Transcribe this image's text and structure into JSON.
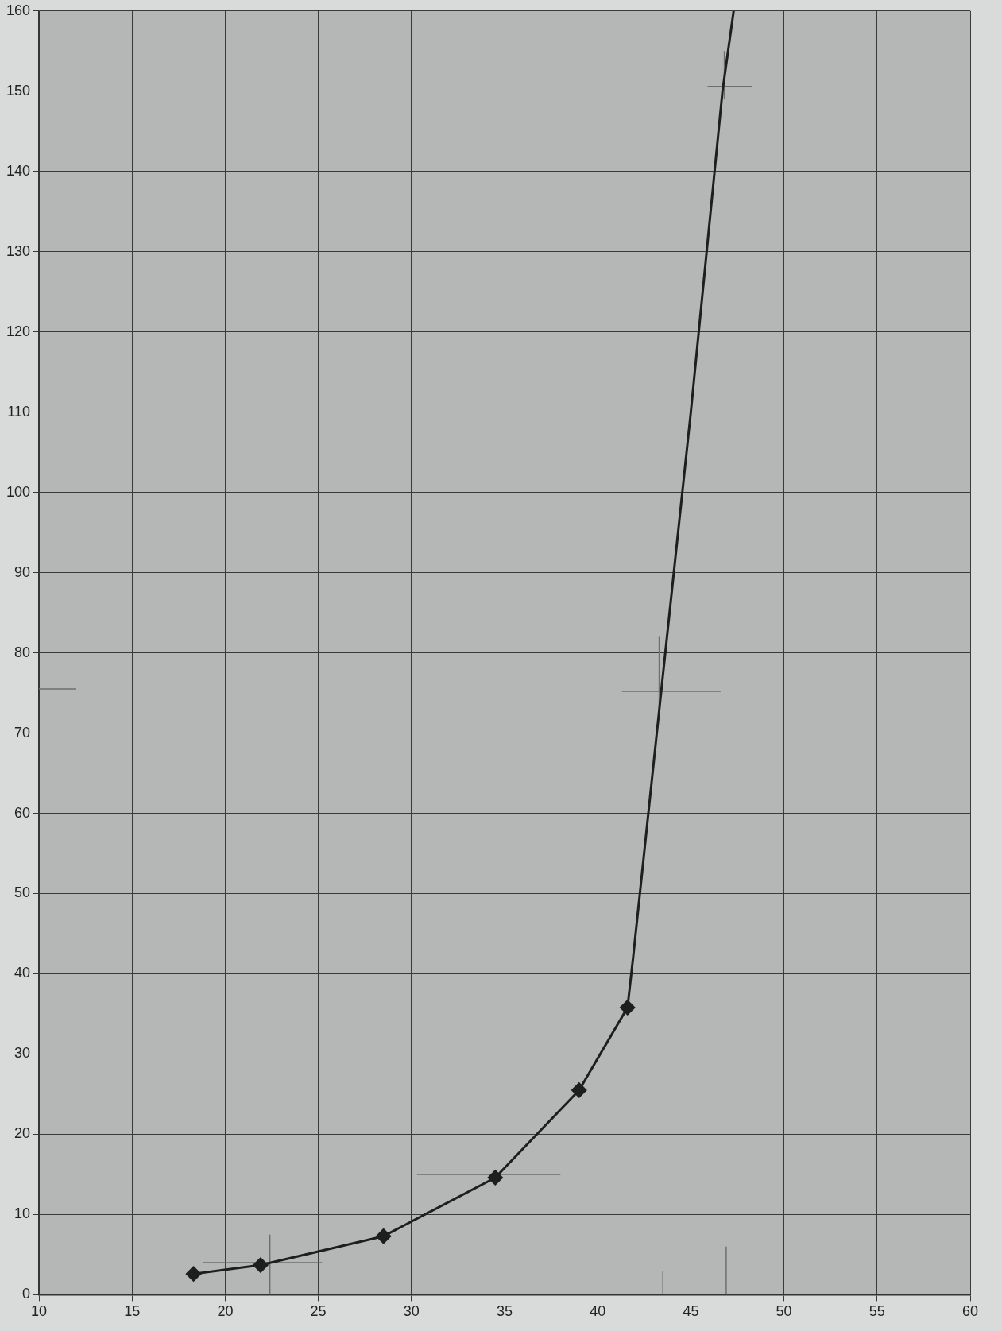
{
  "chart_data": {
    "type": "line",
    "xlim": [
      10,
      60
    ],
    "ylim": [
      0,
      160
    ],
    "xticks": [
      10,
      15,
      20,
      25,
      30,
      35,
      40,
      45,
      50,
      55,
      60
    ],
    "yticks": [
      0,
      10,
      20,
      30,
      40,
      50,
      60,
      70,
      80,
      90,
      100,
      110,
      120,
      130,
      140,
      150,
      160
    ],
    "grid": true,
    "legend": false,
    "series": [
      {
        "color": "#1e1e1e",
        "marker": "diamond",
        "x": [
          18.3,
          21.9,
          28.5,
          34.5,
          39.0,
          41.6
        ],
        "values": [
          2.6,
          3.7,
          7.3,
          14.6,
          25.5,
          35.8
        ]
      },
      {
        "color": "#1e1e1e",
        "marker": "none",
        "x": [
          41.6,
          41.9,
          43.4,
          45.0,
          46.7,
          47.3
        ],
        "values": [
          35.8,
          42,
          75,
          110,
          150,
          160
        ]
      },
      {
        "color": "#6e6e6e",
        "marker": "none",
        "x": [
          18.8,
          25.2
        ],
        "values": [
          4,
          4
        ]
      },
      {
        "color": "#6e6e6e",
        "marker": "none",
        "x": [
          22.4,
          22.4
        ],
        "values": [
          0,
          7.5
        ]
      },
      {
        "color": "#6e6e6e",
        "marker": "none",
        "x": [
          30.3,
          38.0
        ],
        "values": [
          15,
          15
        ]
      },
      {
        "color": "#6e6e6e",
        "marker": "none",
        "x": [
          41.3,
          46.6
        ],
        "values": [
          75.2,
          75.2
        ]
      },
      {
        "color": "#6e6e6e",
        "marker": "none",
        "x": [
          43.3,
          43.3
        ],
        "values": [
          72,
          82
        ]
      },
      {
        "color": "#6e6e6e",
        "marker": "none",
        "x": [
          45.9,
          48.3
        ],
        "values": [
          150.6,
          150.6
        ]
      },
      {
        "color": "#6e6e6e",
        "marker": "none",
        "x": [
          46.8,
          46.8
        ],
        "values": [
          149,
          155
        ]
      },
      {
        "color": "#6e6e6e",
        "marker": "none",
        "x": [
          10,
          12
        ],
        "values": [
          75.5,
          75.5
        ]
      },
      {
        "color": "#6e6e6e",
        "marker": "none",
        "x": [
          43.5,
          43.5
        ],
        "values": [
          0,
          3
        ]
      },
      {
        "color": "#6e6e6e",
        "marker": "none",
        "x": [
          46.9,
          46.9
        ],
        "values": [
          0,
          6
        ]
      }
    ]
  }
}
